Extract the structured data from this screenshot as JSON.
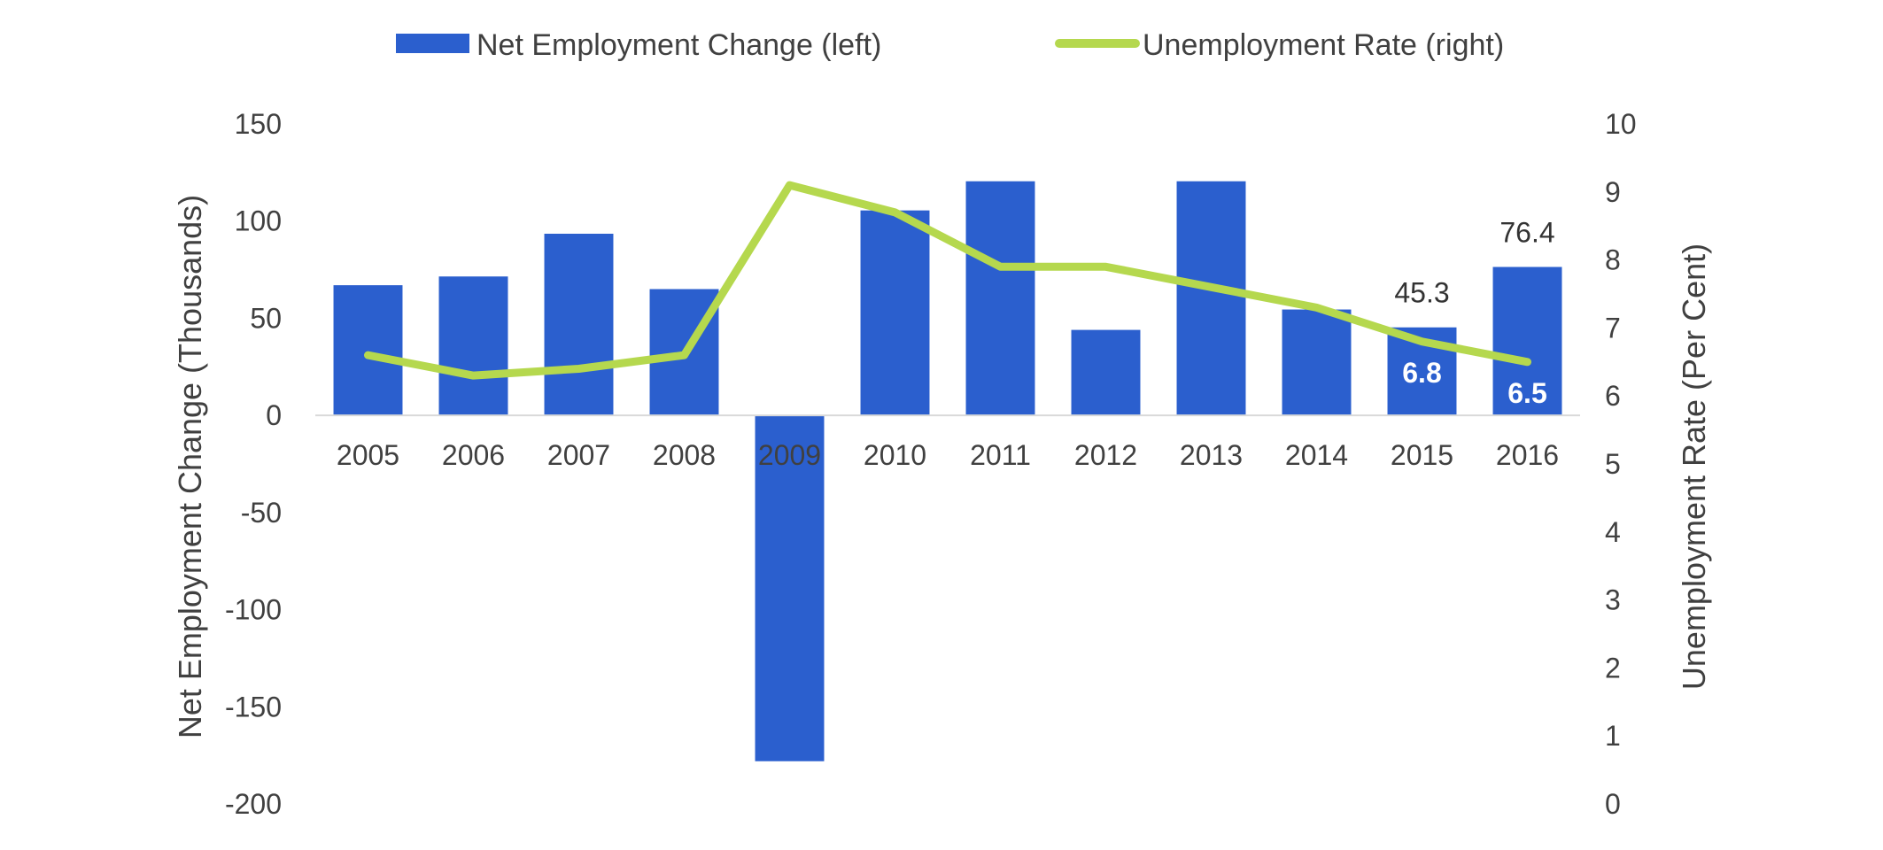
{
  "chart_data": {
    "type": "bar",
    "categories": [
      "2005",
      "2006",
      "2007",
      "2008",
      "2009",
      "2010",
      "2011",
      "2012",
      "2013",
      "2014",
      "2015",
      "2016"
    ],
    "series": [
      {
        "name": "Net Employment Change (left)",
        "type": "bar",
        "axis": "left",
        "color": "#2b5fce",
        "values": [
          67,
          71.5,
          93.5,
          65,
          -178,
          105.5,
          120.5,
          44,
          120.5,
          54.5,
          45.3,
          76.4
        ],
        "labels": [
          "",
          "",
          "",
          "",
          "",
          "",
          "",
          "",
          "",
          "",
          "45.3",
          "76.4"
        ]
      },
      {
        "name": "Unemployment Rate (right)",
        "type": "line",
        "axis": "right",
        "color": "#b5d84e",
        "values": [
          6.6,
          6.3,
          6.4,
          6.6,
          9.1,
          8.7,
          7.9,
          7.9,
          7.6,
          7.3,
          6.8,
          6.5
        ],
        "labels": [
          "",
          "",
          "",
          "",
          "",
          "",
          "",
          "",
          "",
          "",
          "6.8",
          "6.5"
        ]
      }
    ],
    "y_left": {
      "label": "Net Employment Change (Thousands)",
      "min": -200,
      "max": 150,
      "ticks": [
        150,
        100,
        50,
        0,
        -50,
        -100,
        -150,
        -200
      ]
    },
    "y_right": {
      "label": "Unemployment Rate (Per Cent)",
      "min": 0,
      "max": 10,
      "ticks": [
        10,
        9,
        8,
        7,
        6,
        5,
        4,
        3,
        2,
        1,
        0
      ]
    },
    "title": "",
    "xlabel": "",
    "legend": "top-center",
    "grid": false
  }
}
